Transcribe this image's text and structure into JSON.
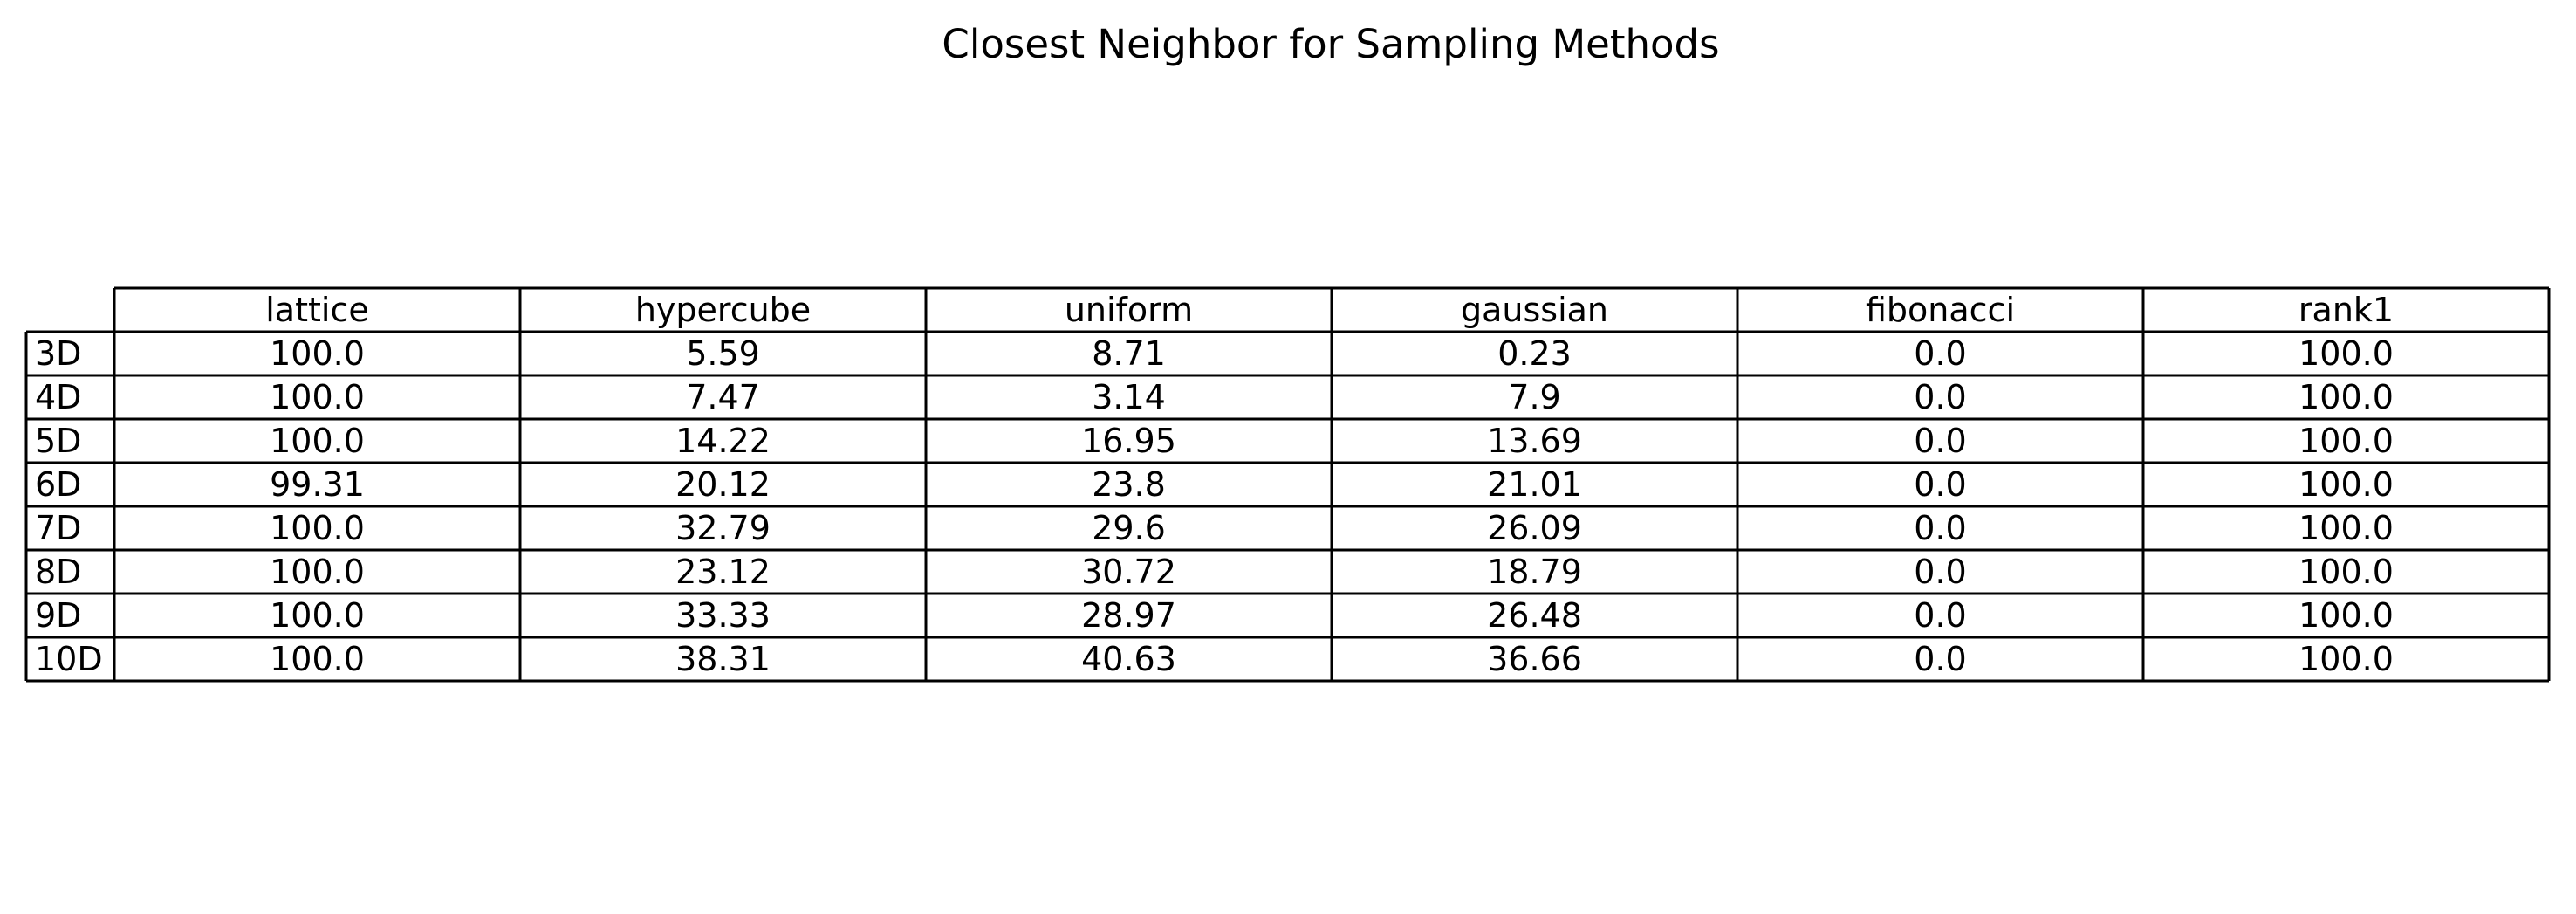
{
  "chart_data": {
    "type": "table",
    "title": "Closest Neighbor for Sampling Methods",
    "columns": [
      "lattice",
      "hypercube",
      "uniform",
      "gaussian",
      "fibonacci",
      "rank1"
    ],
    "rows": [
      {
        "label": "3D",
        "values": [
          "100.0",
          "5.59",
          "8.71",
          "0.23",
          "0.0",
          "100.0"
        ]
      },
      {
        "label": "4D",
        "values": [
          "100.0",
          "7.47",
          "3.14",
          "7.9",
          "0.0",
          "100.0"
        ]
      },
      {
        "label": "5D",
        "values": [
          "100.0",
          "14.22",
          "16.95",
          "13.69",
          "0.0",
          "100.0"
        ]
      },
      {
        "label": "6D",
        "values": [
          "99.31",
          "20.12",
          "23.8",
          "21.01",
          "0.0",
          "100.0"
        ]
      },
      {
        "label": "7D",
        "values": [
          "100.0",
          "32.79",
          "29.6",
          "26.09",
          "0.0",
          "100.0"
        ]
      },
      {
        "label": "8D",
        "values": [
          "100.0",
          "23.12",
          "30.72",
          "18.79",
          "0.0",
          "100.0"
        ]
      },
      {
        "label": "9D",
        "values": [
          "100.0",
          "33.33",
          "28.97",
          "26.48",
          "0.0",
          "100.0"
        ]
      },
      {
        "label": "10D",
        "values": [
          "100.0",
          "38.31",
          "40.63",
          "36.66",
          "0.0",
          "100.0"
        ]
      }
    ]
  }
}
